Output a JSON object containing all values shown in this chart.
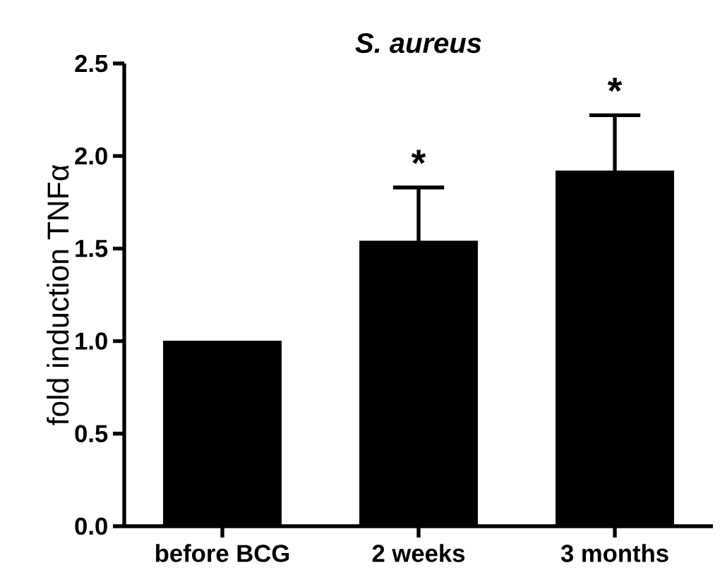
{
  "chart_data": {
    "type": "bar",
    "title": "*S. aureus*",
    "ylabel": "fold induction TNFα",
    "categories": [
      "before BCG",
      "2 weeks",
      "3 months"
    ],
    "values": [
      1.0,
      1.54,
      1.92
    ],
    "errors": [
      null,
      [
        1.54,
        1.83
      ],
      [
        1.92,
        2.22
      ]
    ],
    "color": "#000000",
    "ylim": [
      0,
      2.5
    ],
    "yticks": [
      {
        "value": 0,
        "label": "0.0"
      },
      {
        "value": 0.5,
        "label": "0.5"
      },
      {
        "value": 1,
        "label": "1.0"
      },
      {
        "value": 1.5,
        "label": "1.5"
      },
      {
        "value": 2,
        "label": "2.0"
      },
      {
        "value": 2.5,
        "label": "2.5"
      }
    ],
    "annotations": [
      "*",
      "*"
    ],
    "grid": false
  }
}
